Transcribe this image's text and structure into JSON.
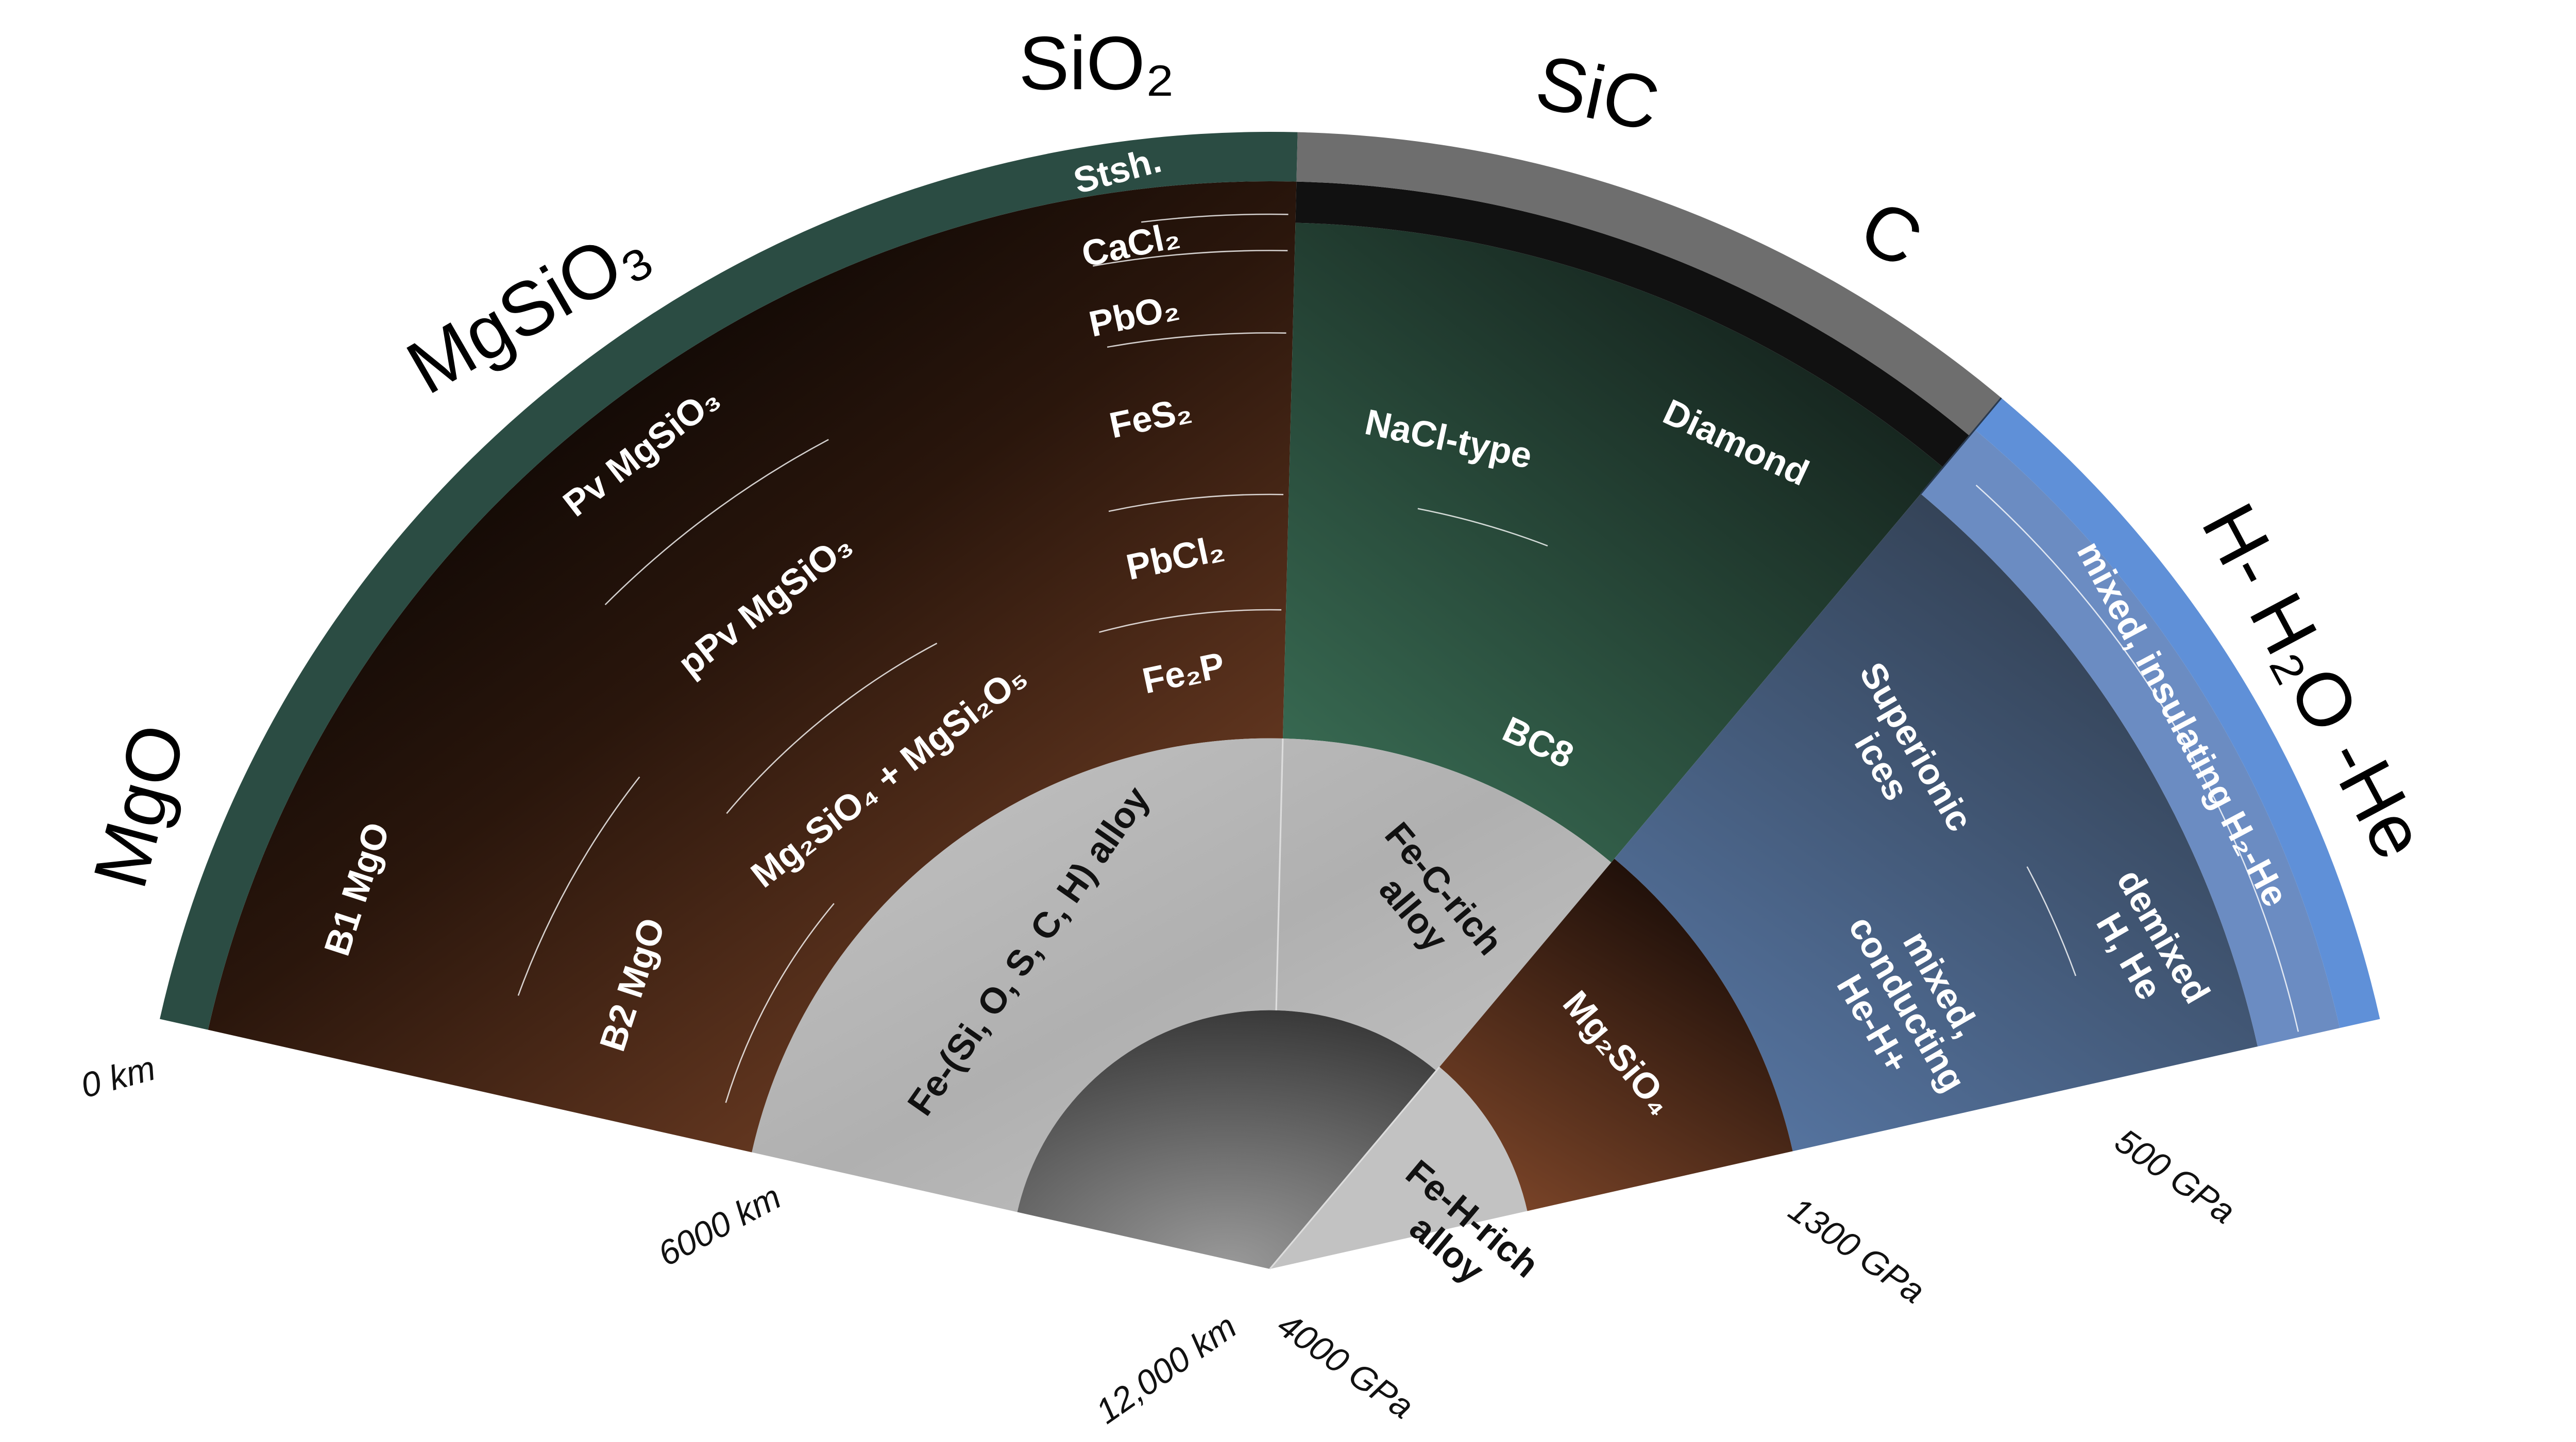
{
  "outer_labels": [
    "MgO",
    "MgSiO₃",
    "SiO₂",
    "SiC",
    "C",
    "H- H₂O -He"
  ],
  "phases": [
    [
      "Stsh."
    ],
    [
      "CaCl₂"
    ],
    [
      "PbO₂"
    ],
    [
      "FeS₂"
    ],
    [
      "PbCl₂"
    ],
    [
      "Fe₂P"
    ],
    [
      "Pv MgSiO₃"
    ],
    [
      "pPv MgSiO₃"
    ],
    [
      "Mg₂SiO₄ + MgSi₂O₅"
    ],
    [
      "B1 MgO"
    ],
    [
      "B2 MgO"
    ],
    [
      "NaCl-type"
    ],
    [
      "Diamond"
    ],
    [
      "BC8"
    ],
    [
      "Fe-(Si, O, S, C, H) alloy"
    ],
    [
      "Fe-C-rich",
      "alloy"
    ],
    [
      "Mg₂SiO₄"
    ],
    [
      "Fe-H-rich",
      "alloy"
    ],
    [
      "Superionic",
      "ices"
    ],
    [
      "mixed,",
      "conducting",
      "He-H+"
    ],
    [
      "demixed",
      "H, He"
    ],
    [
      "mixed, insulating H₂-He"
    ]
  ],
  "scale_labels": [
    "0 km",
    "6000 km",
    "12,000 km",
    "4000 GPa",
    "1300 GPa",
    "500 GPa"
  ]
}
